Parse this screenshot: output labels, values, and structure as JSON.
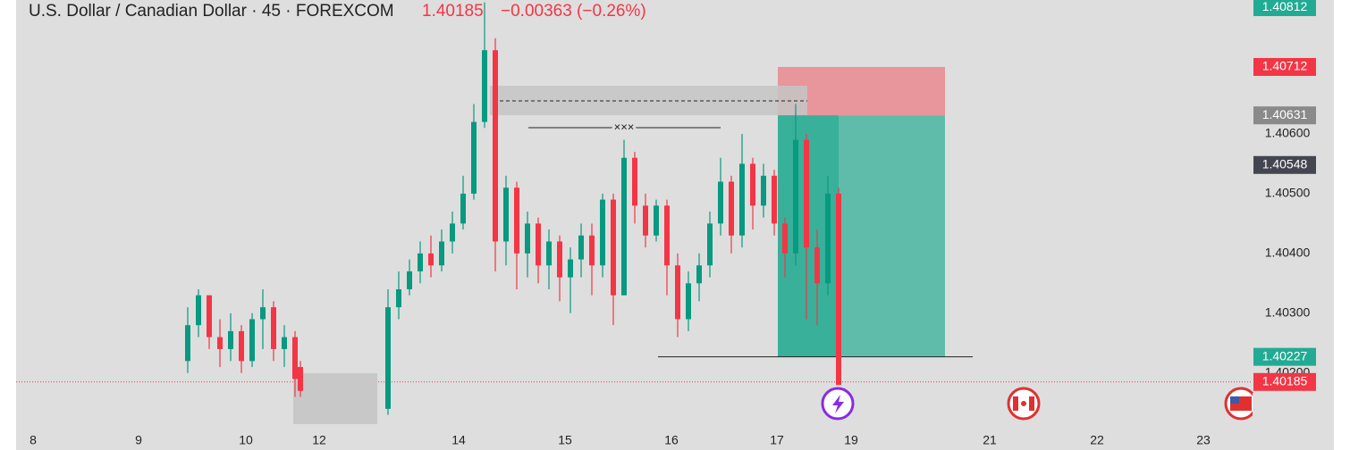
{
  "chart_data": {
    "type": "candlestick",
    "title": "U.S. Dollar / Canadian Dollar · 45 · FOREXCOM",
    "last_price": "1.40185",
    "change": "−0.00363 (−0.26%)",
    "pattern_label": "×××",
    "up_color": "#089981",
    "down_color": "#f23645",
    "xlim": [
      0,
      140
    ],
    "xticks": [
      {
        "value": 3.7,
        "label": "8"
      },
      {
        "value": 15.5,
        "label": "9"
      },
      {
        "value": 27.5,
        "label": "10"
      },
      {
        "value": 35.7,
        "label": "12"
      },
      {
        "value": 51.3,
        "label": "14"
      },
      {
        "value": 63.2,
        "label": "15"
      },
      {
        "value": 75.1,
        "label": "16"
      },
      {
        "value": 86.9,
        "label": "17"
      },
      {
        "value": 95.2,
        "label": "19"
      },
      {
        "value": 110.7,
        "label": "21"
      },
      {
        "value": 122.7,
        "label": "22"
      },
      {
        "value": 134.6,
        "label": "23"
      }
    ],
    "ylim": [
      1.40107,
      1.40824
    ],
    "yticks": [
      {
        "value": 1.402,
        "label": "1.40200"
      },
      {
        "value": 1.403,
        "label": "1.40300"
      },
      {
        "value": 1.404,
        "label": "1.40400"
      },
      {
        "value": 1.405,
        "label": "1.40500"
      },
      {
        "value": 1.406,
        "label": "1.40600"
      }
    ],
    "x": [
      21,
      22.2,
      23.4,
      24.6,
      25.8,
      27,
      28.2,
      29.4,
      30.6,
      31.8,
      33,
      33.6,
      43.4,
      44.6,
      45.8,
      47,
      48.2,
      49.4,
      50.6,
      51.8,
      53,
      54.2,
      55.4,
      56.6,
      57.8,
      59,
      60.2,
      61.4,
      62.6,
      63.8,
      65,
      66.2,
      67.4,
      68.6,
      69.8,
      71,
      72.2,
      73.4,
      74.6,
      75.8,
      77,
      78.2,
      79.4,
      80.6,
      81.8,
      83,
      84.2,
      85.4,
      86.6,
      87.8,
      89,
      90.2,
      91.4,
      92.6,
      93.8
    ],
    "open": [
      1.4022,
      1.4028,
      1.4033,
      1.4026,
      1.4024,
      1.4027,
      1.4022,
      1.4029,
      1.4031,
      1.4024,
      1.4026,
      1.4021,
      1.4014,
      1.4031,
      1.4034,
      1.4037,
      1.404,
      1.4038,
      1.4042,
      1.4045,
      1.405,
      1.4062,
      1.4074,
      1.4042,
      1.4051,
      1.404,
      1.4045,
      1.4038,
      1.4042,
      1.4036,
      1.4039,
      1.4043,
      1.4038,
      1.4049,
      1.4033,
      1.4056,
      1.4048,
      1.4043,
      1.4048,
      1.4038,
      1.4029,
      1.4035,
      1.4038,
      1.4045,
      1.4052,
      1.4043,
      1.4055,
      1.4048,
      1.4053,
      1.4045,
      1.404,
      1.4059,
      1.4041,
      1.4035,
      1.405
    ],
    "high": [
      1.4031,
      1.4034,
      1.4033,
      1.4029,
      1.403,
      1.4028,
      1.403,
      1.4034,
      1.4032,
      1.4028,
      1.4027,
      1.4022,
      1.4034,
      1.4037,
      1.4039,
      1.4042,
      1.4043,
      1.4044,
      1.4047,
      1.4053,
      1.4065,
      1.4082,
      1.4076,
      1.4053,
      1.4052,
      1.4047,
      1.4046,
      1.4044,
      1.4043,
      1.4041,
      1.4045,
      1.4045,
      1.405,
      1.405,
      1.4059,
      1.4057,
      1.405,
      1.4049,
      1.4049,
      1.404,
      1.4037,
      1.404,
      1.4047,
      1.4056,
      1.4053,
      1.406,
      1.4056,
      1.4055,
      1.4054,
      1.4046,
      1.4065,
      1.406,
      1.4044,
      1.4053,
      1.4051
    ],
    "low": [
      1.402,
      1.4026,
      1.4024,
      1.4021,
      1.4022,
      1.402,
      1.4021,
      1.4024,
      1.4022,
      1.4021,
      1.4016,
      1.4016,
      1.4013,
      1.4029,
      1.4033,
      1.4035,
      1.4036,
      1.4037,
      1.404,
      1.4044,
      1.4049,
      1.4061,
      1.4037,
      1.4038,
      1.4034,
      1.4036,
      1.4035,
      1.4034,
      1.4032,
      1.403,
      1.4036,
      1.4033,
      1.4036,
      1.4028,
      1.4033,
      1.4045,
      1.4041,
      1.4042,
      1.4033,
      1.4026,
      1.4027,
      1.4032,
      1.4036,
      1.4043,
      1.404,
      1.4041,
      1.4044,
      1.4046,
      1.4043,
      1.4036,
      1.4038,
      1.4029,
      1.4028,
      1.4033,
      1.4018
    ],
    "close": [
      1.4028,
      1.4033,
      1.4026,
      1.4024,
      1.4027,
      1.4022,
      1.4029,
      1.4031,
      1.4024,
      1.4026,
      1.4019,
      1.4017,
      1.4031,
      1.4034,
      1.4037,
      1.404,
      1.4038,
      1.4042,
      1.4045,
      1.405,
      1.4062,
      1.4074,
      1.4042,
      1.4051,
      1.404,
      1.4045,
      1.4038,
      1.4042,
      1.4036,
      1.4039,
      1.4043,
      1.4038,
      1.4049,
      1.4033,
      1.4056,
      1.4048,
      1.4043,
      1.4048,
      1.4038,
      1.4029,
      1.4035,
      1.4038,
      1.4045,
      1.4052,
      1.4043,
      1.4055,
      1.4048,
      1.4053,
      1.4045,
      1.404,
      1.4059,
      1.4041,
      1.4035,
      1.405,
      1.4018
    ],
    "position": {
      "start": 87,
      "end": 105.7,
      "stop": 1.40712,
      "entry": 1.40631,
      "target": 1.40227
    },
    "price_labels": [
      {
        "value": 1.40812,
        "color": "#22ab94"
      },
      {
        "value": 1.40548,
        "color": "#434651"
      },
      {
        "value": 1.40185,
        "color": "#f23645"
      }
    ]
  }
}
